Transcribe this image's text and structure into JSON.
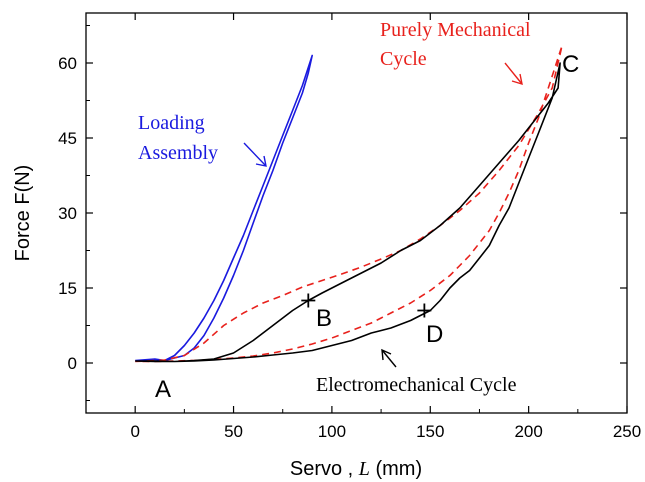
{
  "chart_data": {
    "type": "line",
    "title": "",
    "xlabel_text": "Servo , ",
    "xlabel_var": "L",
    "xlabel_unit": " (mm)",
    "ylabel": "Force F(N)",
    "xlim": [
      -25,
      250
    ],
    "ylim": [
      -10,
      70
    ],
    "xticks": [
      0,
      50,
      100,
      150,
      200,
      250
    ],
    "yticks": [
      0,
      15,
      30,
      45,
      60
    ],
    "grid": false,
    "colors": {
      "loading": "#1a1adf",
      "mechanical": "#e8211c",
      "electromechanical": "#000000"
    },
    "series": [
      {
        "name": "Loading Assembly",
        "style": "solid",
        "color_key": "loading",
        "x": [
          0,
          10,
          15,
          20,
          25,
          30,
          35,
          40,
          45,
          50,
          55,
          60,
          65,
          70,
          75,
          80,
          85,
          90,
          88,
          85,
          80,
          75,
          70,
          65,
          60,
          55,
          50,
          45,
          40,
          35,
          30,
          25,
          20,
          15,
          10,
          5,
          0
        ],
        "y": [
          0.5,
          0.8,
          0.5,
          1.5,
          3.5,
          6,
          9,
          12.5,
          16.5,
          21,
          25.5,
          30.5,
          35.5,
          40.5,
          45.5,
          50.5,
          55.5,
          61.5,
          58,
          54,
          49,
          44,
          38.5,
          33.5,
          28,
          22.5,
          17.5,
          13,
          9,
          5.5,
          3,
          1.5,
          1,
          0.5,
          0.7,
          0.6,
          0.5
        ]
      },
      {
        "name": "Purely Mechanical Cycle",
        "style": "dashed",
        "color_key": "mechanical",
        "x": [
          0,
          15,
          25,
          35,
          45,
          55,
          65,
          75,
          85,
          95,
          105,
          115,
          125,
          135,
          145,
          155,
          165,
          175,
          185,
          195,
          205,
          212,
          217,
          210,
          205,
          200,
          195,
          190,
          185,
          180,
          175,
          170,
          165,
          160,
          150,
          140,
          130,
          120,
          110,
          100,
          90,
          80,
          70,
          60,
          50,
          40,
          30,
          20,
          10,
          0
        ],
        "y": [
          0.3,
          0.6,
          1.5,
          4,
          7.5,
          10,
          12,
          13.5,
          15.2,
          16.5,
          17.8,
          19.2,
          20.8,
          22.5,
          24.8,
          27.5,
          30.5,
          34,
          38.5,
          43.5,
          50,
          55,
          63.5,
          55,
          49,
          44,
          38.5,
          34,
          30,
          26.5,
          24,
          21.5,
          19.5,
          17.5,
          14.5,
          12,
          10,
          8,
          6.5,
          5,
          3.8,
          2.8,
          2,
          1.4,
          1,
          0.7,
          0.5,
          0.4,
          0.3,
          0.3
        ]
      },
      {
        "name": "Electromechanical Cycle",
        "style": "solid",
        "color_key": "electromechanical",
        "x": [
          0,
          10,
          20,
          30,
          40,
          50,
          60,
          70,
          80,
          88,
          95,
          105,
          115,
          125,
          135,
          145,
          155,
          165,
          175,
          185,
          195,
          203,
          210,
          215,
          216,
          212,
          205,
          200,
          195,
          190,
          185,
          180,
          175,
          170,
          165,
          160,
          155,
          150,
          145,
          140,
          130,
          120,
          110,
          100,
          90,
          80,
          70,
          60,
          50,
          40,
          30,
          20,
          10,
          0
        ],
        "y": [
          0.4,
          0.4,
          0.3,
          0.5,
          0.8,
          2,
          4.5,
          7.5,
          10.5,
          12.5,
          14,
          16,
          18,
          20,
          22.5,
          24.5,
          27.5,
          31,
          35.5,
          40,
          44.5,
          48.5,
          52,
          55,
          60,
          53,
          46,
          41,
          36,
          31,
          27.5,
          23.5,
          21,
          18.5,
          17,
          15,
          12.5,
          10.5,
          9.5,
          8.5,
          7,
          6,
          4.5,
          3.5,
          2.5,
          2,
          1.6,
          1.2,
          0.9,
          0.6,
          0.4,
          0.3,
          0.3,
          0.4
        ]
      }
    ],
    "points": [
      {
        "label": "A",
        "x": 0,
        "y": 0,
        "marker": false
      },
      {
        "label": "B",
        "x": 88,
        "y": 12.5,
        "marker": true
      },
      {
        "label": "C",
        "x": 216,
        "y": 60,
        "marker": false
      },
      {
        "label": "D",
        "x": 147,
        "y": 10.5,
        "marker": true
      }
    ],
    "annotations": [
      {
        "lines": [
          "Loading",
          "Assembly"
        ],
        "color_key": "loading"
      },
      {
        "lines": [
          "Purely Mechanical",
          "Cycle"
        ],
        "color_key": "mechanical"
      },
      {
        "lines": [
          "Electromechanical  Cycle"
        ],
        "color_key": "electromechanical"
      }
    ]
  }
}
